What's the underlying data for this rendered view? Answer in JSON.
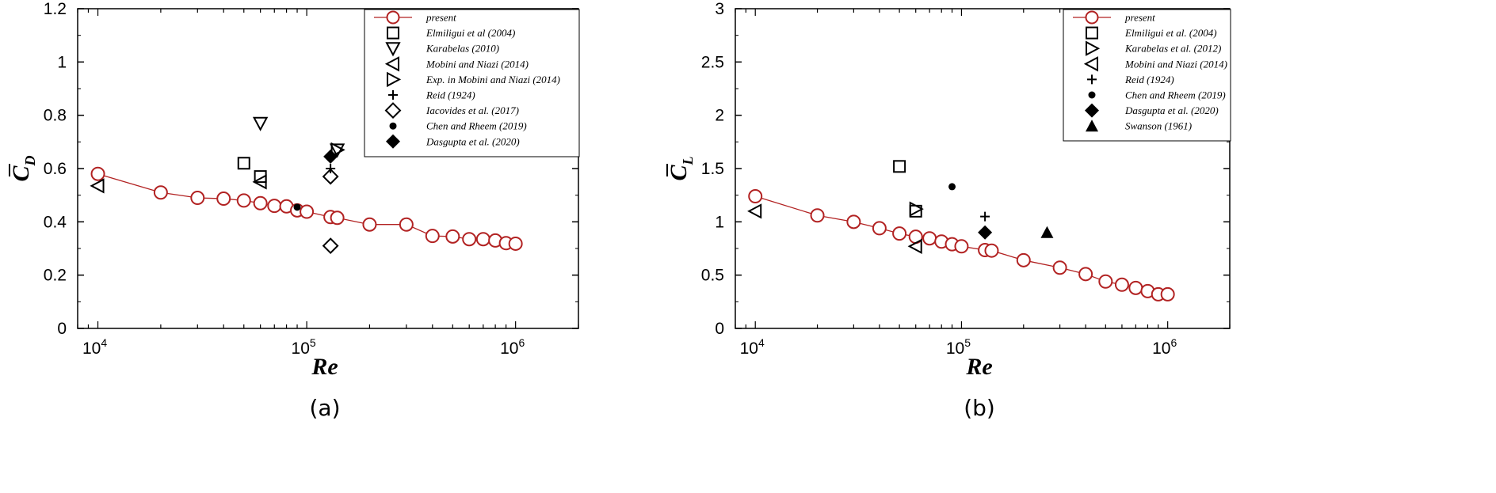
{
  "chart_data": [
    {
      "type": "scatter",
      "panel_label": "(a)",
      "xlabel": "Re",
      "ylabel": "C_D",
      "ylabel_html": "C̅D",
      "xscale": "log",
      "xlim": [
        8000,
        2000000
      ],
      "ylim": [
        0,
        1.2
      ],
      "yticks": [
        "0",
        "0.2",
        "0.4",
        "0.6",
        "0.8",
        "1",
        "1.2"
      ],
      "xticks": [
        {
          "base": "10",
          "exp": "4"
        },
        {
          "base": "10",
          "exp": "5"
        },
        {
          "base": "10",
          "exp": "6"
        }
      ],
      "legend_position": "top-right",
      "series": [
        {
          "name": "present",
          "marker": "circle-open",
          "line": true,
          "color": "#b22222",
          "x": [
            10000,
            20000,
            30000,
            40000,
            50000,
            60000,
            70000,
            80000,
            90000,
            100000,
            130000,
            140000,
            200000,
            300000,
            400000,
            500000,
            600000,
            700000,
            800000,
            900000,
            1000000
          ],
          "y": [
            0.58,
            0.51,
            0.49,
            0.487,
            0.48,
            0.47,
            0.46,
            0.458,
            0.443,
            0.438,
            0.418,
            0.415,
            0.39,
            0.39,
            0.347,
            0.345,
            0.335,
            0.335,
            0.33,
            0.32,
            0.318
          ]
        },
        {
          "name": "Elmiligui et al (2004)",
          "marker": "square-open",
          "x": [
            50000,
            60000
          ],
          "y": [
            0.62,
            0.57
          ]
        },
        {
          "name": "Karabelas (2010)",
          "marker": "tri-down-open",
          "x": [
            60000,
            140000
          ],
          "y": [
            0.77,
            0.67
          ]
        },
        {
          "name": "Mobini and Niazi (2014)",
          "marker": "tri-left-open",
          "x": [
            10000,
            60000
          ],
          "y": [
            0.535,
            0.55
          ]
        },
        {
          "name": "Exp. in Mobini and Niazi (2014)",
          "marker": "tri-right-open",
          "x": [
            140000
          ],
          "y": [
            0.67
          ]
        },
        {
          "name": "Reid (1924)",
          "marker": "plus",
          "x": [
            130000
          ],
          "y": [
            0.6
          ]
        },
        {
          "name": "Iacovides et al. (2017)",
          "marker": "diamond-open",
          "x": [
            130000,
            130000
          ],
          "y": [
            0.57,
            0.31
          ]
        },
        {
          "name": "Chen and Rheem (2019)",
          "marker": "dot",
          "x": [
            90000
          ],
          "y": [
            0.455
          ]
        },
        {
          "name": "Dasgupta et al. (2020)",
          "marker": "diamond-filled",
          "x": [
            130000
          ],
          "y": [
            0.645
          ]
        }
      ]
    },
    {
      "type": "scatter",
      "panel_label": "(b)",
      "xlabel": "Re",
      "ylabel": "C_L",
      "ylabel_html": "C̅L",
      "xscale": "log",
      "xlim": [
        8000,
        2000000
      ],
      "ylim": [
        0,
        3
      ],
      "yticks": [
        "0",
        "0.5",
        "1",
        "1.5",
        "2",
        "2.5",
        "3"
      ],
      "xticks": [
        {
          "base": "10",
          "exp": "4"
        },
        {
          "base": "10",
          "exp": "5"
        },
        {
          "base": "10",
          "exp": "6"
        }
      ],
      "legend_position": "top-right",
      "series": [
        {
          "name": "present",
          "marker": "circle-open",
          "line": true,
          "color": "#b22222",
          "x": [
            10000,
            20000,
            30000,
            40000,
            50000,
            60000,
            70000,
            80000,
            90000,
            100000,
            130000,
            140000,
            200000,
            300000,
            400000,
            500000,
            600000,
            700000,
            800000,
            900000,
            1000000
          ],
          "y": [
            1.24,
            1.06,
            1.0,
            0.94,
            0.89,
            0.86,
            0.845,
            0.815,
            0.79,
            0.77,
            0.735,
            0.73,
            0.64,
            0.57,
            0.51,
            0.44,
            0.41,
            0.38,
            0.35,
            0.32,
            0.32
          ]
        },
        {
          "name": "Elmiligui et al. (2004)",
          "marker": "square-open",
          "x": [
            50000,
            60000
          ],
          "y": [
            1.52,
            1.1
          ]
        },
        {
          "name": "Karabelas et al. (2012)",
          "marker": "tri-right-open",
          "x": [
            60000
          ],
          "y": [
            1.12
          ]
        },
        {
          "name": "Mobini and Niazi (2014)",
          "marker": "tri-left-open",
          "x": [
            10000,
            60000
          ],
          "y": [
            1.1,
            0.77
          ]
        },
        {
          "name": "Reid (1924)",
          "marker": "plus",
          "x": [
            130000
          ],
          "y": [
            1.05
          ]
        },
        {
          "name": "Chen and Rheem (2019)",
          "marker": "dot",
          "x": [
            90000
          ],
          "y": [
            1.33
          ]
        },
        {
          "name": "Dasgupta et al. (2020)",
          "marker": "diamond-filled",
          "x": [
            130000
          ],
          "y": [
            0.9
          ]
        },
        {
          "name": "Swanson (1961)",
          "marker": "tri-up-filled",
          "x": [
            260000
          ],
          "y": [
            0.9
          ]
        }
      ]
    }
  ]
}
